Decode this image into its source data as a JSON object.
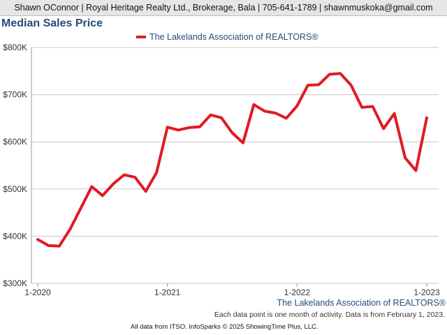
{
  "header": {
    "text": "Shawn OConnor | Royal Heritage Realty Ltd., Brokerage, Bala | 705-641-1789 | shawnmuskoka@gmail.com"
  },
  "footer": {
    "source_label": "The Lakelands Association of REALTORS®",
    "note": "Each data point is one month of activity. Data is from February 1, 2023.",
    "copyright": "All data from ITSO. InfoSparks © 2025 ShowingTime Plus, LLC."
  },
  "colors": {
    "series": "#e01b24",
    "title": "#254b7a",
    "grid": "#c8c8c8",
    "header_bg": "#e6e6e6"
  },
  "chart_data": {
    "type": "line",
    "title": "Median Sales Price",
    "xlabel": "",
    "ylabel": "",
    "ylim": [
      300000,
      800000
    ],
    "y_ticks": [
      300000,
      400000,
      500000,
      600000,
      700000,
      800000
    ],
    "y_tick_labels": [
      "$300K",
      "$400K",
      "$500K",
      "$600K",
      "$700K",
      "$800K"
    ],
    "x_tick_labels": [
      "1-2020",
      "1-2021",
      "1-2022",
      "1-2023"
    ],
    "x_tick_months": [
      "2020-01",
      "2021-01",
      "2022-01",
      "2023-01"
    ],
    "grid": true,
    "legend_position": "top-center",
    "x": [
      "2020-01",
      "2020-02",
      "2020-03",
      "2020-04",
      "2020-05",
      "2020-06",
      "2020-07",
      "2020-08",
      "2020-09",
      "2020-10",
      "2020-11",
      "2020-12",
      "2021-01",
      "2021-02",
      "2021-03",
      "2021-04",
      "2021-05",
      "2021-06",
      "2021-07",
      "2021-08",
      "2021-09",
      "2021-10",
      "2021-11",
      "2021-12",
      "2022-01",
      "2022-02",
      "2022-03",
      "2022-04",
      "2022-05",
      "2022-06",
      "2022-07",
      "2022-08",
      "2022-09",
      "2022-10",
      "2022-11",
      "2022-12",
      "2023-01"
    ],
    "series": [
      {
        "name": "The Lakelands Association of REALTORS®",
        "values": [
          393000,
          380000,
          379000,
          415000,
          460000,
          505000,
          486000,
          511000,
          530000,
          525000,
          495000,
          535000,
          631000,
          625000,
          630000,
          632000,
          657000,
          651000,
          619000,
          598000,
          679000,
          665000,
          661000,
          650000,
          676000,
          720000,
          721000,
          743000,
          745000,
          720000,
          673000,
          675000,
          628000,
          660000,
          566000,
          539000,
          651000
        ]
      }
    ]
  }
}
